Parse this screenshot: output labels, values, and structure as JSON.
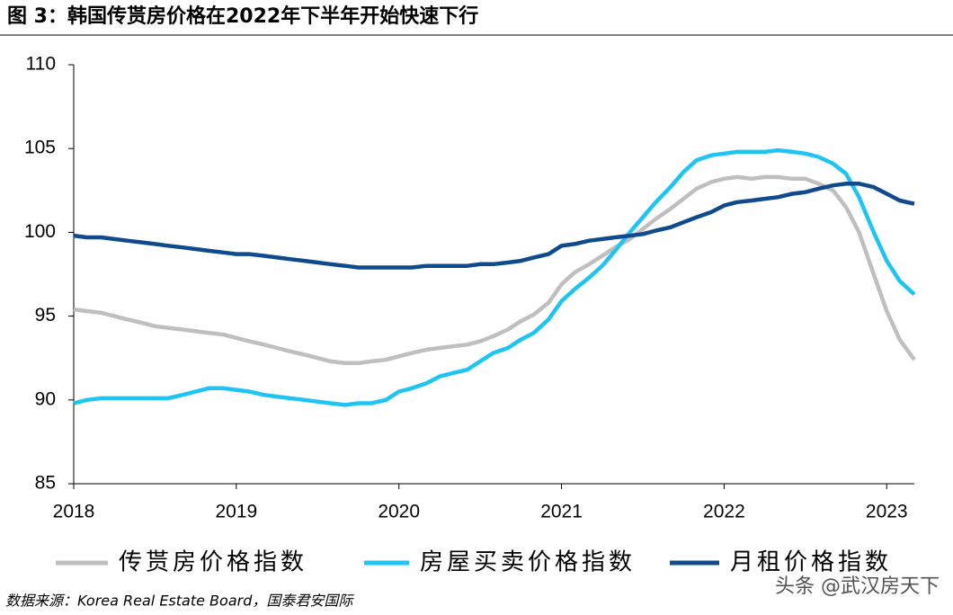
{
  "chart_data": {
    "type": "line",
    "title": "图 3：韩国传贳房价格在2022年下半年开始快速下行",
    "x": [
      2018,
      2018.08,
      2018.17,
      2018.25,
      2018.33,
      2018.42,
      2018.5,
      2018.58,
      2018.67,
      2018.75,
      2018.83,
      2018.92,
      2019,
      2019.08,
      2019.17,
      2019.25,
      2019.33,
      2019.42,
      2019.5,
      2019.58,
      2019.67,
      2019.75,
      2019.83,
      2019.92,
      2020,
      2020.08,
      2020.17,
      2020.25,
      2020.33,
      2020.42,
      2020.5,
      2020.58,
      2020.67,
      2020.75,
      2020.83,
      2020.92,
      2021,
      2021.08,
      2021.17,
      2021.25,
      2021.33,
      2021.42,
      2021.5,
      2021.58,
      2021.67,
      2021.75,
      2021.83,
      2021.92,
      2022,
      2022.08,
      2022.17,
      2022.25,
      2022.33,
      2022.42,
      2022.5,
      2022.58,
      2022.67,
      2022.75,
      2022.83,
      2022.92,
      2023,
      2023.08,
      2023.17
    ],
    "series": [
      {
        "name": "传贳房价格指数",
        "color": "#bfbfbf",
        "values": [
          95.4,
          95.3,
          95.2,
          95.0,
          94.8,
          94.6,
          94.4,
          94.3,
          94.2,
          94.1,
          94.0,
          93.9,
          93.7,
          93.5,
          93.3,
          93.1,
          92.9,
          92.7,
          92.5,
          92.3,
          92.2,
          92.2,
          92.3,
          92.4,
          92.6,
          92.8,
          93.0,
          93.1,
          93.2,
          93.3,
          93.5,
          93.8,
          94.2,
          94.7,
          95.1,
          95.8,
          96.9,
          97.6,
          98.1,
          98.6,
          99.1,
          99.6,
          100.2,
          100.8,
          101.4,
          102.0,
          102.6,
          103.0,
          103.2,
          103.3,
          103.2,
          103.3,
          103.3,
          103.2,
          103.2,
          102.9,
          102.5,
          101.5,
          100.0,
          97.5,
          95.3,
          93.6,
          92.4
        ]
      },
      {
        "name": "房屋买卖价格指数",
        "color": "#1ec5f2",
        "values": [
          89.8,
          90.0,
          90.1,
          90.1,
          90.1,
          90.1,
          90.1,
          90.1,
          90.3,
          90.5,
          90.7,
          90.7,
          90.6,
          90.5,
          90.3,
          90.2,
          90.1,
          90.0,
          89.9,
          89.8,
          89.7,
          89.8,
          89.8,
          90.0,
          90.5,
          90.7,
          91.0,
          91.4,
          91.6,
          91.8,
          92.3,
          92.8,
          93.1,
          93.6,
          94.0,
          94.8,
          95.9,
          96.6,
          97.3,
          98.0,
          98.9,
          100.0,
          100.9,
          101.8,
          102.7,
          103.6,
          104.3,
          104.6,
          104.7,
          104.8,
          104.8,
          104.8,
          104.9,
          104.8,
          104.7,
          104.5,
          104.1,
          103.5,
          102.1,
          100.0,
          98.3,
          97.1,
          96.3
        ]
      },
      {
        "name": "月租价格指数",
        "color": "#0e4a8c",
        "values": [
          99.8,
          99.7,
          99.7,
          99.6,
          99.5,
          99.4,
          99.3,
          99.2,
          99.1,
          99.0,
          98.9,
          98.8,
          98.7,
          98.7,
          98.6,
          98.5,
          98.4,
          98.3,
          98.2,
          98.1,
          98.0,
          97.9,
          97.9,
          97.9,
          97.9,
          97.9,
          98.0,
          98.0,
          98.0,
          98.0,
          98.1,
          98.1,
          98.2,
          98.3,
          98.5,
          98.7,
          99.2,
          99.3,
          99.5,
          99.6,
          99.7,
          99.8,
          99.9,
          100.1,
          100.3,
          100.6,
          100.9,
          101.2,
          101.6,
          101.8,
          101.9,
          102.0,
          102.1,
          102.3,
          102.4,
          102.6,
          102.8,
          102.9,
          102.9,
          102.7,
          102.3,
          101.9,
          101.7
        ]
      }
    ],
    "xlim": [
      2018,
      2023.17
    ],
    "xticks": [
      2018,
      2019,
      2020,
      2021,
      2022,
      2023
    ],
    "ylim": [
      85,
      110
    ],
    "yticks": [
      85,
      90,
      95,
      100,
      105,
      110
    ],
    "source": "数据来源：Korea Real Estate Board，国泰君安国际",
    "watermark": "头条 @武汉房天下"
  }
}
